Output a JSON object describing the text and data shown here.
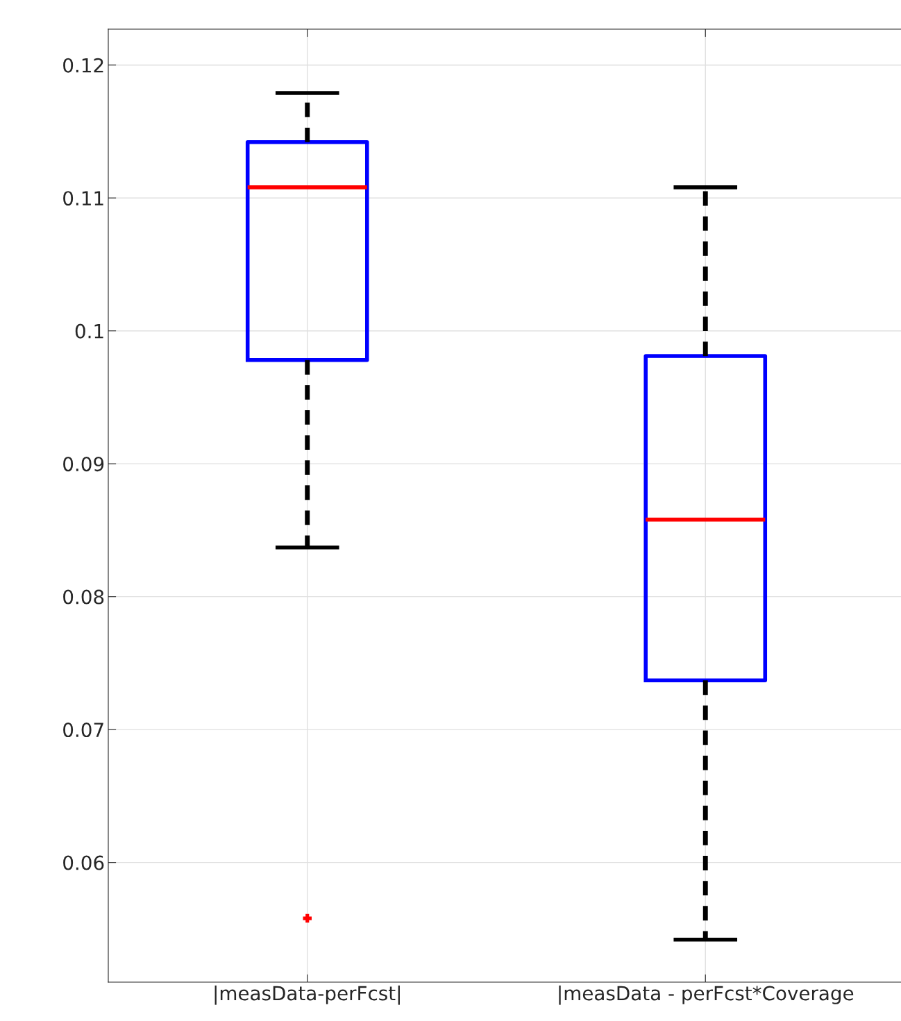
{
  "chart_data": {
    "type": "box",
    "categories": [
      "|measData-perFcst|",
      "|measData - perFcst*Coverage"
    ],
    "series": [
      {
        "color": "#0000ff",
        "boxes": [
          {
            "low": 0.0837,
            "q1": 0.0978,
            "median": 0.1108,
            "q3": 0.1142,
            "high": 0.1179,
            "outliers": [
              0.0558
            ]
          },
          {
            "low": 0.0542,
            "q1": 0.0737,
            "median": 0.0858,
            "q3": 0.0981,
            "high": 0.1108
          }
        ]
      }
    ],
    "ylim": [
      0.051,
      0.1227
    ],
    "yticks": [
      0.06,
      0.07,
      0.08,
      0.09,
      0.1,
      0.11,
      0.12
    ],
    "grid": true,
    "marker": "cross",
    "line_style": "dashed"
  }
}
